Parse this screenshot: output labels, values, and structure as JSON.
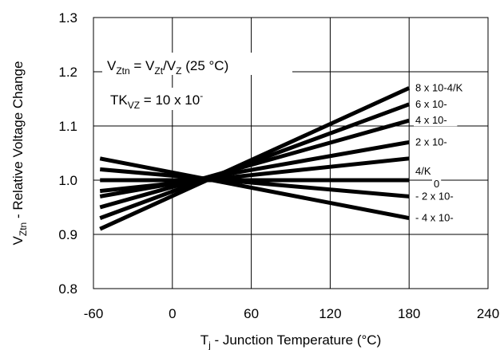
{
  "chart_data": {
    "type": "line",
    "xlabel": {
      "main": "T",
      "sub": "j",
      "rest": " - Junction Temperature (°C)"
    },
    "ylabel": {
      "main": "V",
      "sub": "Ztn",
      "rest": " - Relative Voltage Change"
    },
    "xlim": [
      -60,
      240
    ],
    "ylim": [
      0.8,
      1.3
    ],
    "xticks": [
      "-60",
      "0",
      "60",
      "120",
      "180",
      "240"
    ],
    "xtick_values": [
      -60,
      0,
      60,
      120,
      180,
      240
    ],
    "yticks": [
      "0.8",
      "0.9",
      "1.0",
      "1.1",
      "1.2",
      "1.3"
    ],
    "ytick_values": [
      0.8,
      0.9,
      1.0,
      1.1,
      1.2,
      1.3
    ],
    "grid": true,
    "annotations": {
      "formula": {
        "v1": "V",
        "s1": "Ztn",
        "t1": " = V",
        "s2": "Zt",
        "t2": "/V",
        "s3": "Z",
        "t3": " (25 °C)"
      },
      "tk": {
        "t1": "TK",
        "s1": "VZ",
        "t2": " = 10 x 10",
        "sup": "-"
      }
    },
    "series": [
      {
        "label": "8 x 10-4/K",
        "x": [
          -55,
          180
        ],
        "y": [
          0.91,
          1.17
        ]
      },
      {
        "label": "6 x 10-",
        "x": [
          -55,
          180
        ],
        "y": [
          0.93,
          1.14
        ]
      },
      {
        "label": "4 x 10-",
        "x": [
          -55,
          180
        ],
        "y": [
          0.95,
          1.11
        ]
      },
      {
        "label": "2 x 10-",
        "x": [
          -55,
          180
        ],
        "y": [
          0.97,
          1.07
        ]
      },
      {
        "label": "",
        "x": [
          -55,
          180
        ],
        "y": [
          0.98,
          1.04
        ]
      },
      {
        "label": "0",
        "x": [
          -55,
          180
        ],
        "y": [
          1.0,
          1.0
        ]
      },
      {
        "label": "- 2 x 10-",
        "x": [
          -55,
          180
        ],
        "y": [
          1.02,
          0.97
        ]
      },
      {
        "label": "- 4 x 10-",
        "x": [
          -55,
          180
        ],
        "y": [
          1.04,
          0.93
        ]
      }
    ],
    "extra_labels": [
      "4/K"
    ]
  }
}
